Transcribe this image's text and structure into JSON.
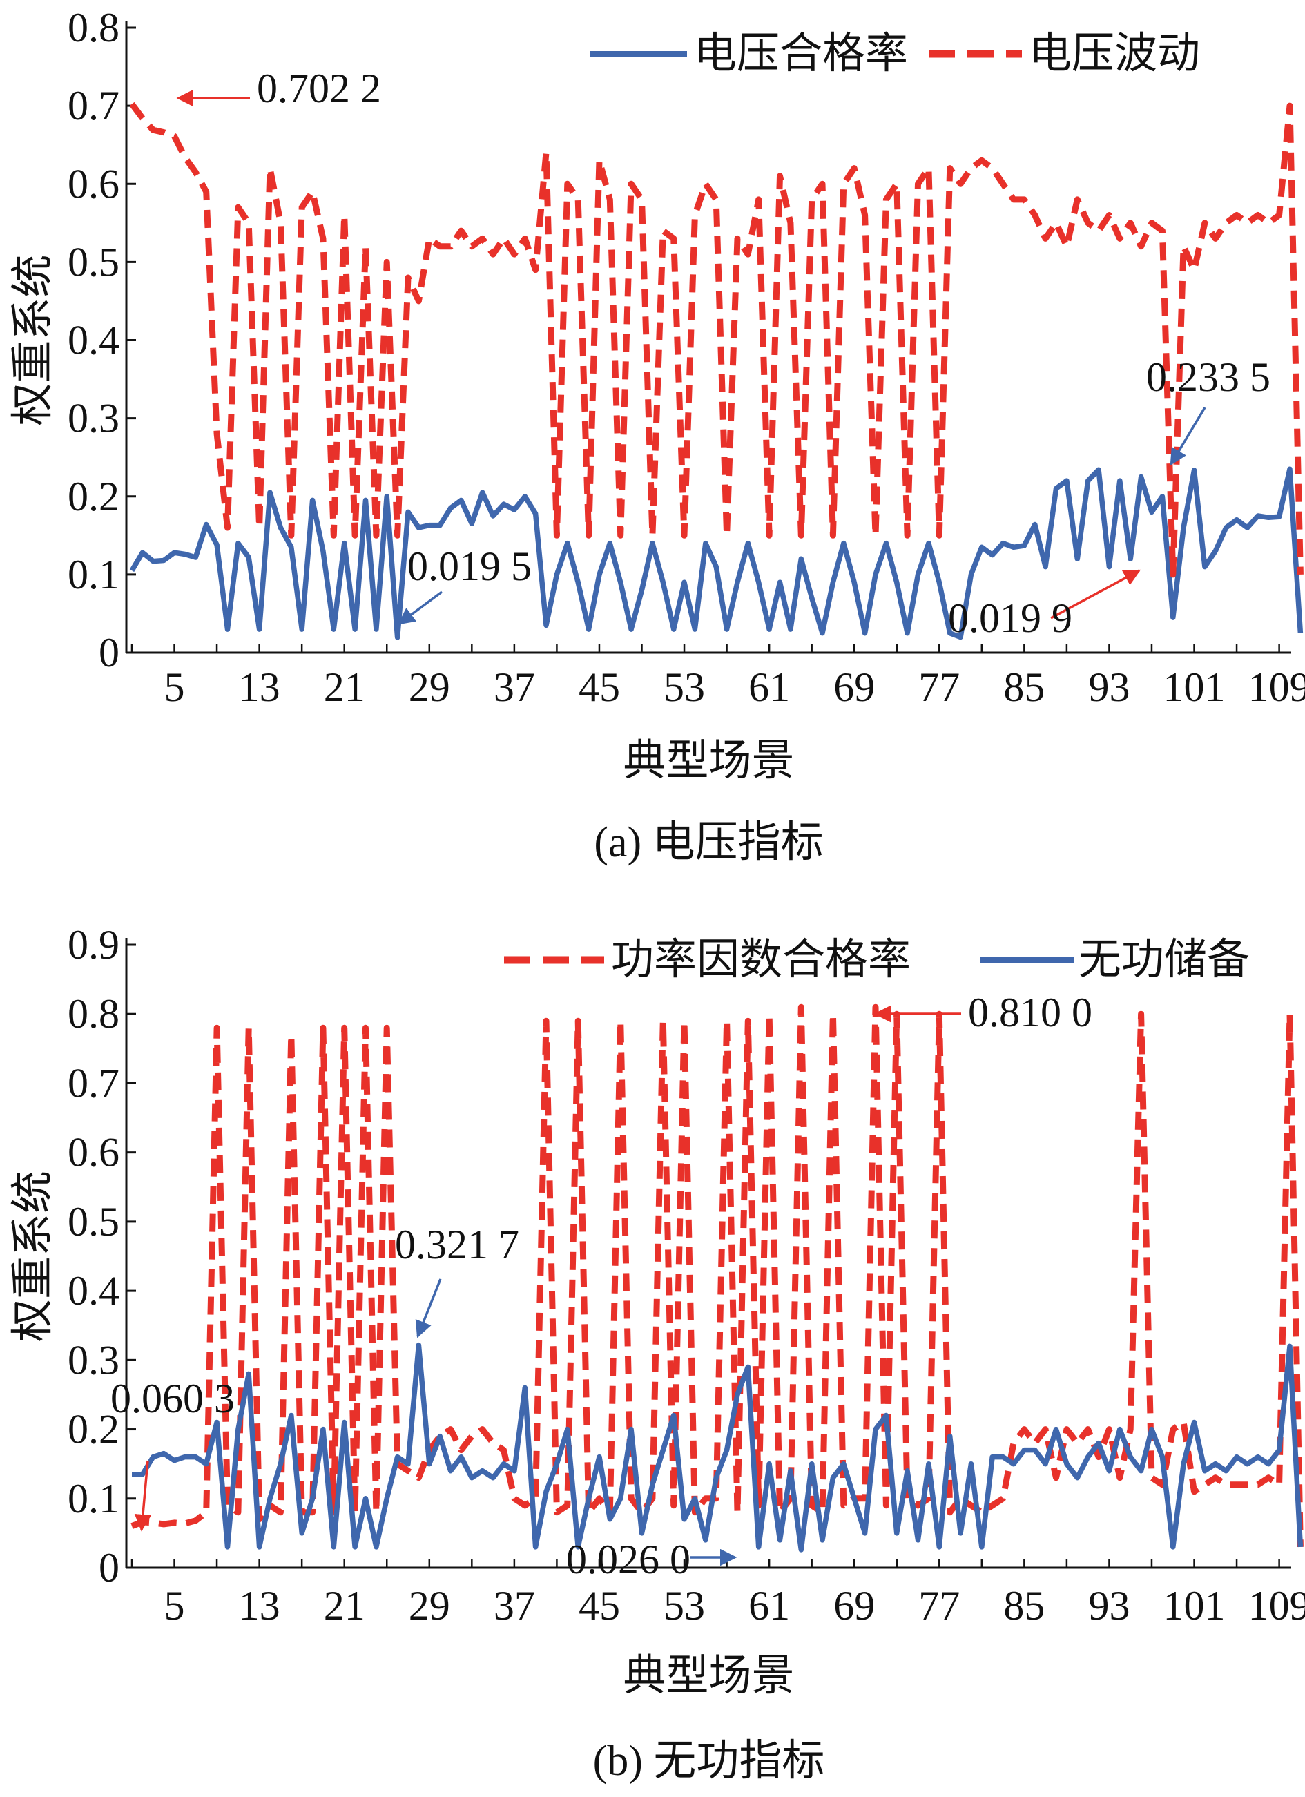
{
  "colors": {
    "red": "#e8312a",
    "blue": "#3f67ad",
    "axis": "#111111"
  },
  "chart_data": [
    {
      "type": "line",
      "caption": "(a) 电压指标",
      "xlabel": "典型场景",
      "ylabel": "权重系统",
      "ylim": [
        0,
        0.8
      ],
      "yticks": [
        "0",
        "0.1",
        "0.2",
        "0.3",
        "0.4",
        "0.5",
        "0.6",
        "0.7",
        "0.8"
      ],
      "xlim": [
        1,
        110
      ],
      "xticks": [
        5,
        13,
        21,
        29,
        37,
        45,
        53,
        61,
        69,
        77,
        85,
        93,
        101,
        109
      ],
      "legend": [
        "电压合格率",
        "电压波动"
      ],
      "legend_position": "top-right",
      "series": [
        {
          "name": "电压合格率",
          "style": "solid",
          "color": "blue",
          "values": [
            0.105,
            0.128,
            0.117,
            0.118,
            0.128,
            0.126,
            0.122,
            0.164,
            0.138,
            0.03,
            0.14,
            0.122,
            0.03,
            0.205,
            0.16,
            0.135,
            0.03,
            0.195,
            0.13,
            0.03,
            0.14,
            0.03,
            0.195,
            0.03,
            0.2,
            0.0195,
            0.18,
            0.16,
            0.163,
            0.163,
            0.185,
            0.195,
            0.165,
            0.205,
            0.175,
            0.19,
            0.183,
            0.2,
            0.178,
            0.035,
            0.1,
            0.14,
            0.09,
            0.03,
            0.1,
            0.14,
            0.09,
            0.03,
            0.08,
            0.14,
            0.09,
            0.03,
            0.09,
            0.03,
            0.14,
            0.11,
            0.03,
            0.09,
            0.14,
            0.09,
            0.03,
            0.09,
            0.03,
            0.12,
            0.07,
            0.025,
            0.09,
            0.14,
            0.09,
            0.025,
            0.1,
            0.14,
            0.09,
            0.025,
            0.1,
            0.14,
            0.09,
            0.025,
            0.0199,
            0.1,
            0.135,
            0.125,
            0.14,
            0.135,
            0.137,
            0.164,
            0.11,
            0.21,
            0.22,
            0.12,
            0.22,
            0.234,
            0.11,
            0.22,
            0.12,
            0.225,
            0.18,
            0.2,
            0.045,
            0.16,
            0.2335,
            0.11,
            0.13,
            0.16,
            0.17,
            0.16,
            0.175,
            0.173,
            0.174,
            0.235,
            0.025
          ]
        },
        {
          "name": "电压波动",
          "style": "dashed",
          "color": "red",
          "values": [
            0.7022,
            0.684,
            0.669,
            0.666,
            0.661,
            0.634,
            0.615,
            0.59,
            0.28,
            0.16,
            0.57,
            0.55,
            0.16,
            0.62,
            0.55,
            0.15,
            0.57,
            0.59,
            0.53,
            0.15,
            0.56,
            0.15,
            0.52,
            0.15,
            0.5,
            0.15,
            0.48,
            0.45,
            0.53,
            0.52,
            0.52,
            0.54,
            0.52,
            0.53,
            0.51,
            0.53,
            0.51,
            0.53,
            0.49,
            0.64,
            0.15,
            0.6,
            0.58,
            0.15,
            0.63,
            0.58,
            0.15,
            0.6,
            0.58,
            0.15,
            0.54,
            0.53,
            0.15,
            0.56,
            0.6,
            0.58,
            0.15,
            0.53,
            0.51,
            0.58,
            0.15,
            0.61,
            0.55,
            0.15,
            0.58,
            0.6,
            0.15,
            0.6,
            0.62,
            0.56,
            0.15,
            0.58,
            0.6,
            0.15,
            0.6,
            0.62,
            0.15,
            0.62,
            0.6,
            0.62,
            0.63,
            0.62,
            0.6,
            0.58,
            0.58,
            0.56,
            0.53,
            0.55,
            0.52,
            0.58,
            0.55,
            0.54,
            0.56,
            0.53,
            0.55,
            0.52,
            0.55,
            0.54,
            0.1,
            0.52,
            0.49,
            0.55,
            0.53,
            0.55,
            0.56,
            0.55,
            0.56,
            0.55,
            0.56,
            0.7,
            0.1
          ]
        }
      ],
      "annotations": [
        {
          "text": "0.702 2",
          "x": 1,
          "y": 0.7022,
          "color": "red"
        },
        {
          "text": "0.019 5",
          "x": 26,
          "y": 0.0195,
          "color": "blue"
        },
        {
          "text": "0.019 9",
          "x": 99,
          "y": 0.0199,
          "color": "red"
        },
        {
          "text": "0.233 5",
          "x": 101,
          "y": 0.2335,
          "color": "blue"
        }
      ]
    },
    {
      "type": "line",
      "caption": "(b) 无功指标",
      "xlabel": "典型场景",
      "ylabel": "权重系统",
      "ylim": [
        0,
        0.9
      ],
      "yticks": [
        "0",
        "0.1",
        "0.2",
        "0.3",
        "0.4",
        "0.5",
        "0.6",
        "0.7",
        "0.8",
        "0.9"
      ],
      "xlim": [
        1,
        110
      ],
      "xticks": [
        5,
        13,
        21,
        29,
        37,
        45,
        53,
        61,
        69,
        77,
        85,
        93,
        101,
        109
      ],
      "legend": [
        "功率因数合格率",
        "无功储备"
      ],
      "legend_position": "top-right",
      "series": [
        {
          "name": "功率因数合格率",
          "style": "dashed",
          "color": "red",
          "values": [
            0.0603,
            0.066,
            0.065,
            0.063,
            0.065,
            0.064,
            0.068,
            0.08,
            0.78,
            0.09,
            0.08,
            0.78,
            0.07,
            0.09,
            0.08,
            0.77,
            0.08,
            0.08,
            0.78,
            0.08,
            0.78,
            0.08,
            0.78,
            0.08,
            0.78,
            0.15,
            0.14,
            0.13,
            0.17,
            0.19,
            0.2,
            0.17,
            0.19,
            0.2,
            0.18,
            0.17,
            0.1,
            0.09,
            0.1,
            0.79,
            0.08,
            0.09,
            0.79,
            0.08,
            0.1,
            0.08,
            0.79,
            0.1,
            0.08,
            0.1,
            0.79,
            0.09,
            0.79,
            0.08,
            0.1,
            0.1,
            0.79,
            0.08,
            0.79,
            0.09,
            0.8,
            0.08,
            0.1,
            0.81,
            0.09,
            0.08,
            0.8,
            0.09,
            0.1,
            0.1,
            0.81,
            0.09,
            0.8,
            0.1,
            0.09,
            0.1,
            0.8,
            0.08,
            0.1,
            0.09,
            0.08,
            0.09,
            0.1,
            0.18,
            0.2,
            0.18,
            0.2,
            0.13,
            0.2,
            0.18,
            0.2,
            0.16,
            0.2,
            0.13,
            0.2,
            0.8,
            0.13,
            0.12,
            0.2,
            0.21,
            0.11,
            0.12,
            0.13,
            0.12,
            0.12,
            0.12,
            0.12,
            0.13,
            0.12,
            0.8,
            0.03
          ]
        },
        {
          "name": "无功储备",
          "style": "solid",
          "color": "blue",
          "values": [
            0.135,
            0.135,
            0.16,
            0.165,
            0.155,
            0.16,
            0.16,
            0.15,
            0.21,
            0.03,
            0.2,
            0.28,
            0.03,
            0.1,
            0.15,
            0.22,
            0.05,
            0.1,
            0.2,
            0.03,
            0.21,
            0.03,
            0.1,
            0.03,
            0.1,
            0.16,
            0.15,
            0.3217,
            0.15,
            0.19,
            0.14,
            0.16,
            0.13,
            0.14,
            0.13,
            0.15,
            0.14,
            0.26,
            0.03,
            0.11,
            0.15,
            0.2,
            0.03,
            0.1,
            0.16,
            0.07,
            0.1,
            0.2,
            0.05,
            0.12,
            0.17,
            0.22,
            0.07,
            0.1,
            0.04,
            0.13,
            0.17,
            0.25,
            0.29,
            0.03,
            0.15,
            0.04,
            0.14,
            0.026,
            0.15,
            0.04,
            0.13,
            0.15,
            0.1,
            0.05,
            0.2,
            0.22,
            0.05,
            0.14,
            0.04,
            0.15,
            0.03,
            0.19,
            0.05,
            0.15,
            0.03,
            0.16,
            0.16,
            0.15,
            0.17,
            0.17,
            0.15,
            0.2,
            0.15,
            0.13,
            0.16,
            0.18,
            0.14,
            0.2,
            0.16,
            0.14,
            0.2,
            0.16,
            0.03,
            0.15,
            0.21,
            0.14,
            0.15,
            0.14,
            0.16,
            0.15,
            0.16,
            0.15,
            0.17,
            0.32,
            0.03
          ]
        }
      ],
      "annotations": [
        {
          "text": "0.060 3",
          "x": 1,
          "y": 0.0603,
          "color": "red"
        },
        {
          "text": "0.321 7",
          "x": 28,
          "y": 0.3217,
          "color": "blue"
        },
        {
          "text": "0.026 0",
          "x": 64,
          "y": 0.026,
          "color": "blue"
        },
        {
          "text": "0.810 0",
          "x": 72,
          "y": 0.81,
          "color": "red"
        }
      ]
    }
  ]
}
